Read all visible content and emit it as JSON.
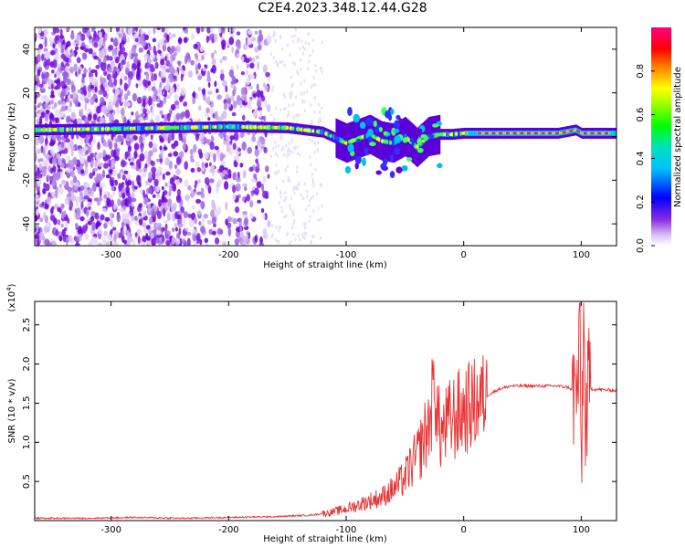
{
  "title": "C2E4.2023.348.12.44.G28",
  "chart_data": [
    {
      "type": "heatmap",
      "xlabel": "Height of straight line (km)",
      "ylabel": "Frequency (Hz)",
      "xlim": [
        -365,
        130
      ],
      "ylim": [
        -50,
        50
      ],
      "x_ticks": [
        -300,
        -200,
        -100,
        0,
        100
      ],
      "x_tick_labels": [
        "-300",
        "-200",
        "-100",
        "0",
        "100"
      ],
      "y_ticks": [
        -40,
        -20,
        0,
        20,
        40
      ],
      "y_tick_labels": [
        "-40",
        "-20",
        "0",
        "20",
        "40"
      ],
      "colorbar": {
        "label": "Normalized spectral amplitude",
        "range": [
          0,
          1
        ],
        "ticks": [
          0,
          0.2,
          0.4,
          0.6,
          0.8
        ],
        "tick_labels": [
          "0.0",
          "0.2",
          "0.4",
          "0.6",
          "0.8"
        ]
      },
      "ridge": {
        "description_values": "dominant frequency ridge vs height",
        "x": [
          -365,
          -300,
          -250,
          -200,
          -150,
          -120,
          -100,
          -90,
          -80,
          -70,
          -60,
          -50,
          -40,
          -30,
          -20,
          -10,
          0,
          20,
          50,
          80,
          95,
          100,
          110,
          130
        ],
        "y": [
          3,
          3.5,
          4,
          4.5,
          4,
          2,
          -3,
          -1,
          1,
          -2,
          -3,
          0,
          -5,
          0,
          1,
          1,
          1.5,
          1.5,
          1.5,
          1.5,
          3,
          1.5,
          1.5,
          1.5
        ]
      },
      "grid": false
    },
    {
      "type": "line",
      "xlabel": "Height of straight line (km)",
      "ylabel": "SNR (10 * v/v)",
      "y_multiplier_label": "(x10",
      "y_multiplier_exp": "4",
      "y_multiplier_close": ")",
      "xlim": [
        -365,
        130
      ],
      "ylim": [
        0,
        2.8
      ],
      "x_ticks": [
        -300,
        -200,
        -100,
        0,
        100
      ],
      "x_tick_labels": [
        "-300",
        "-200",
        "-100",
        "0",
        "100"
      ],
      "y_ticks": [
        0.5,
        1.0,
        1.5,
        2.0,
        2.5
      ],
      "y_tick_labels": [
        "0.5",
        "1.0",
        "1.5",
        "2.0",
        "2.5"
      ],
      "series": [
        {
          "color": "#e83030",
          "x": [
            -365,
            -320,
            -280,
            -240,
            -200,
            -160,
            -130,
            -115,
            -100,
            -90,
            -80,
            -70,
            -60,
            -50,
            -45,
            -40,
            -35,
            -30,
            -27,
            -25,
            -22,
            -20,
            -15,
            -10,
            -5,
            0,
            10,
            20,
            30,
            40,
            60,
            80,
            90,
            95,
            97,
            99,
            100,
            102,
            104,
            106,
            110,
            120,
            130
          ],
          "y": [
            0.03,
            0.03,
            0.04,
            0.03,
            0.04,
            0.05,
            0.07,
            0.1,
            0.15,
            0.2,
            0.25,
            0.3,
            0.4,
            0.55,
            0.7,
            0.8,
            1.0,
            1.2,
            1.5,
            1.8,
            1.3,
            1.1,
            1.2,
            1.3,
            1.35,
            1.4,
            1.5,
            1.6,
            1.68,
            1.72,
            1.72,
            1.72,
            1.7,
            1.6,
            1.7,
            2.5,
            0.5,
            2.6,
            1.0,
            1.7,
            1.68,
            1.67,
            1.66
          ]
        }
      ],
      "grid": false
    }
  ]
}
